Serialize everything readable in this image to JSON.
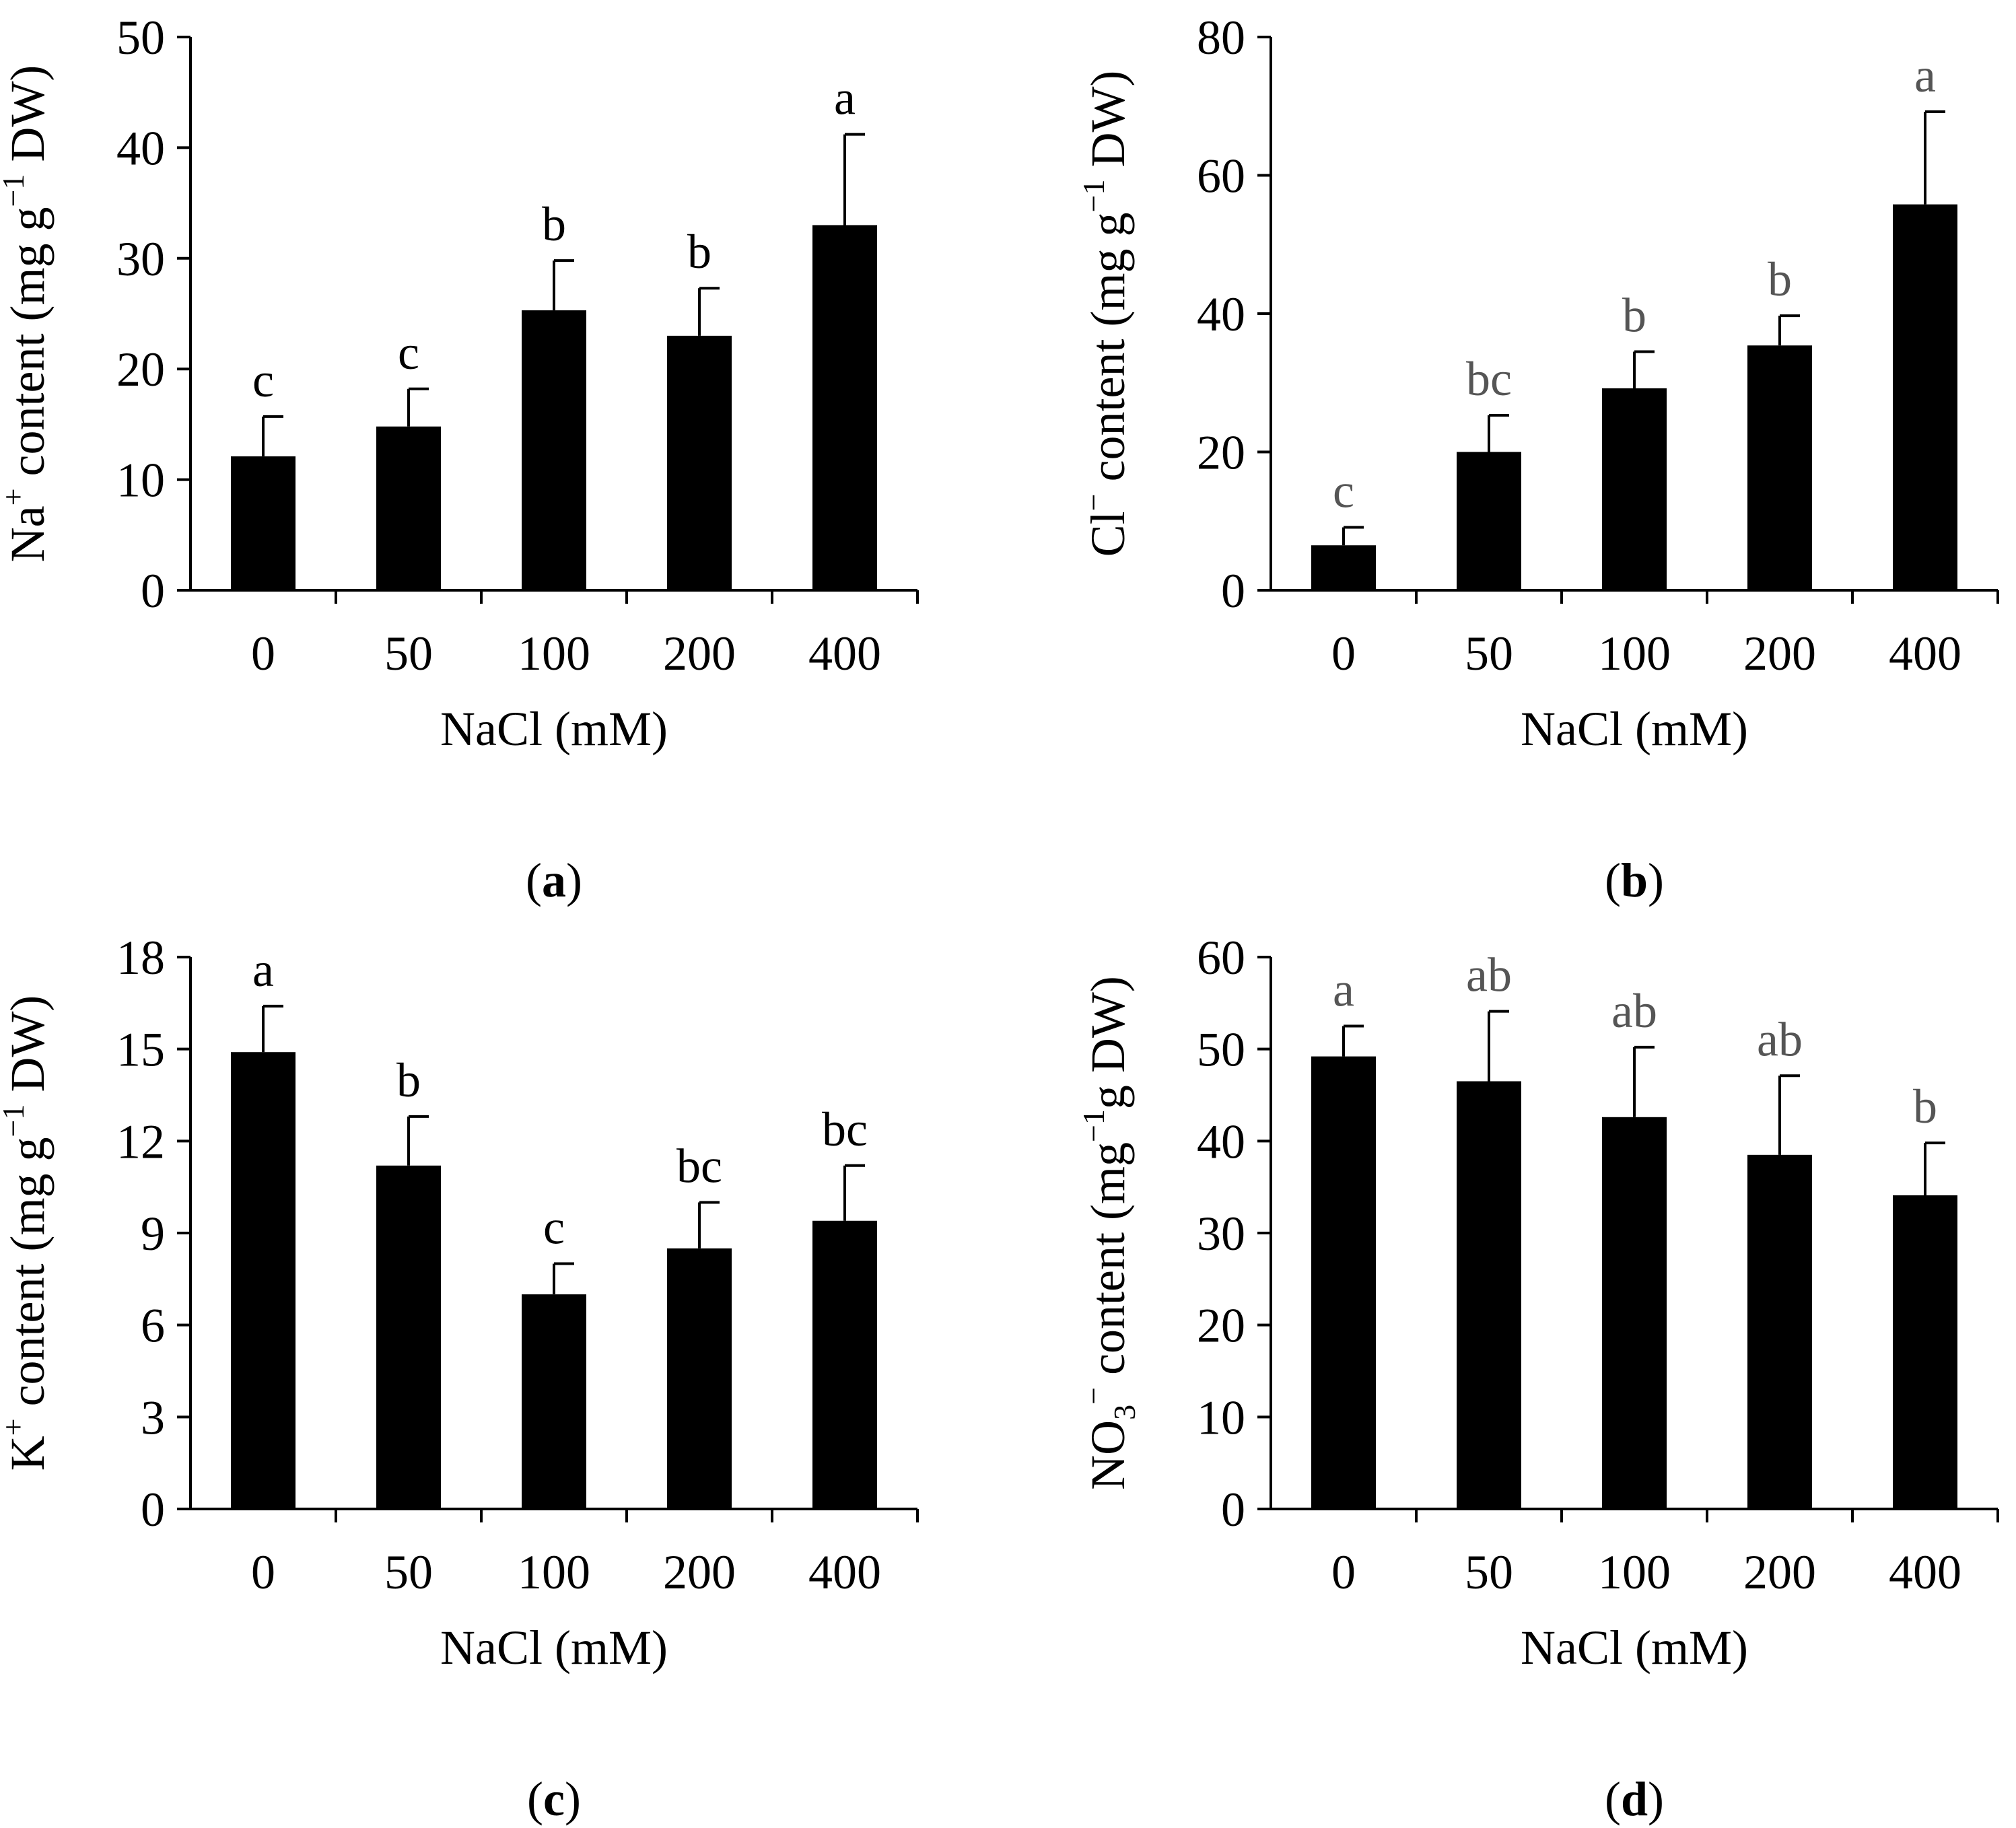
{
  "colors": {
    "bar": "#000000",
    "axis": "#000000",
    "letter_dark": "#000000",
    "letter_gray": "#555555"
  },
  "chart_data": [
    {
      "id": "a",
      "type": "bar",
      "panel_label": "a",
      "categories": [
        "0",
        "50",
        "100",
        "200",
        "400"
      ],
      "values": [
        12.1,
        14.8,
        25.3,
        23.0,
        33.0
      ],
      "errors": [
        3.6,
        3.4,
        4.5,
        4.3,
        8.2
      ],
      "letters": [
        "c",
        "c",
        "b",
        "b",
        "a"
      ],
      "letter_color": "dark",
      "ylim": [
        0,
        50
      ],
      "yticks": [
        "0",
        "10",
        "20",
        "30",
        "40",
        "50"
      ],
      "xlabel": "NaCl (mM)",
      "ylabel": {
        "pre": "Na",
        "sup": "+",
        "mid": " content (mg g",
        "sup2": "−1",
        "post": " DW)"
      }
    },
    {
      "id": "b",
      "type": "bar",
      "panel_label": "b",
      "categories": [
        "0",
        "50",
        "100",
        "200",
        "400"
      ],
      "values": [
        6.5,
        20.0,
        29.2,
        35.4,
        55.8
      ],
      "errors": [
        2.6,
        5.3,
        5.3,
        4.3,
        13.4
      ],
      "letters": [
        "c",
        "bc",
        "b",
        "b",
        "a"
      ],
      "letter_color": "gray",
      "ylim": [
        0,
        80
      ],
      "yticks": [
        "0",
        "20",
        "40",
        "60",
        "80"
      ],
      "xlabel": "NaCl (mM)",
      "ylabel": {
        "pre": "Cl",
        "sup": "−",
        "mid": " content (mg g",
        "sup2": "−1",
        "post": " DW)"
      }
    },
    {
      "id": "c",
      "type": "bar",
      "panel_label": "c",
      "categories": [
        "0",
        "50",
        "100",
        "200",
        "400"
      ],
      "values": [
        14.9,
        11.2,
        7.0,
        8.5,
        9.4
      ],
      "errors": [
        1.5,
        1.6,
        1.0,
        1.5,
        1.8
      ],
      "letters": [
        "a",
        "b",
        "c",
        "bc",
        "bc"
      ],
      "letter_color": "dark",
      "ylim": [
        0,
        18
      ],
      "yticks": [
        "0",
        "3",
        "6",
        "9",
        "12",
        "15",
        "18"
      ],
      "xlabel": "NaCl (mM)",
      "ylabel": {
        "pre": "K",
        "sup": "+",
        "mid": " content (mg g",
        "sup2": "−1",
        "post": " DW)"
      }
    },
    {
      "id": "d",
      "type": "bar",
      "panel_label": "d",
      "categories": [
        "0",
        "50",
        "100",
        "200",
        "400"
      ],
      "values": [
        49.2,
        46.5,
        42.6,
        38.5,
        34.1
      ],
      "errors": [
        3.3,
        7.6,
        7.6,
        8.6,
        5.7
      ],
      "letters": [
        "a",
        "ab",
        "ab",
        "ab",
        "b"
      ],
      "letter_color": "gray",
      "ylim": [
        0,
        60
      ],
      "yticks": [
        "0",
        "10",
        "20",
        "30",
        "40",
        "50",
        "60"
      ],
      "xlabel": "NaCl (mM)",
      "ylabel": {
        "pre": "NO",
        "sub": "3",
        "sup": "−",
        "mid": " content (mg",
        "sup2": "−1",
        "post": "g DW)"
      }
    }
  ]
}
